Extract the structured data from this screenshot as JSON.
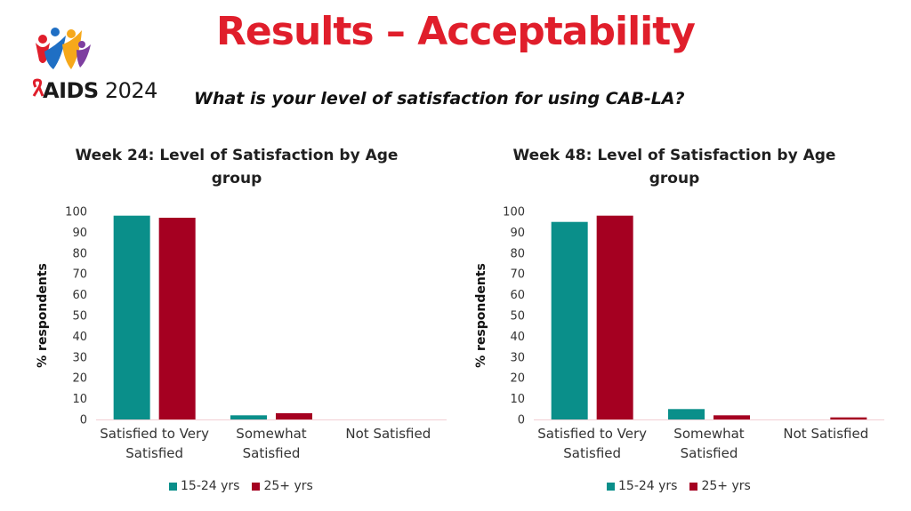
{
  "slide": {
    "title": "Results – Acceptability",
    "question": "What is your level of satisfaction for using CAB-LA?",
    "logo_word": "AIDS",
    "logo_year": "2024"
  },
  "colors": {
    "title": "#e01e2b",
    "series_teal": "#0a8f8a",
    "series_red": "#a50021",
    "axis": "#f2cfd4"
  },
  "chart_data": [
    {
      "type": "bar",
      "title": "Week 24: Level of Satisfaction by Age group",
      "title_lines": [
        "Week 24: Level of Satisfaction by Age",
        "group"
      ],
      "ylabel": "% respondents",
      "xlabel": "",
      "ylim": [
        0,
        100
      ],
      "yticks": [
        0,
        10,
        20,
        30,
        40,
        50,
        60,
        70,
        80,
        90,
        100
      ],
      "categories": [
        "Satisfied to Very Satisfied",
        "Somewhat Satisfied",
        "Not Satisfied"
      ],
      "category_lines": [
        [
          "Satisfied to Very",
          "Satisfied"
        ],
        [
          "Somewhat",
          "Satisfied"
        ],
        [
          "Not Satisfied"
        ]
      ],
      "series": [
        {
          "name": "15-24 yrs",
          "values": [
            98,
            2,
            0
          ],
          "color": "#0a8f8a"
        },
        {
          "name": "25+ yrs",
          "values": [
            97,
            3,
            0
          ],
          "color": "#a50021"
        }
      ],
      "legend": "bottom",
      "grid": false
    },
    {
      "type": "bar",
      "title": "Week 48: Level of Satisfaction by Age group",
      "title_lines": [
        "Week 48: Level of Satisfaction by Age",
        "group"
      ],
      "ylabel": "% respondents",
      "xlabel": "",
      "ylim": [
        0,
        100
      ],
      "yticks": [
        0,
        10,
        20,
        30,
        40,
        50,
        60,
        70,
        80,
        90,
        100
      ],
      "categories": [
        "Satisfied to Very Satisfied",
        "Somewhat Satisfied",
        "Not Satisfied"
      ],
      "category_lines": [
        [
          "Satisfied to Very",
          "Satisfied"
        ],
        [
          "Somewhat",
          "Satisfied"
        ],
        [
          "Not Satisfied"
        ]
      ],
      "series": [
        {
          "name": "15-24 yrs",
          "values": [
            95,
            5,
            0
          ],
          "color": "#0a8f8a"
        },
        {
          "name": "25+ yrs",
          "values": [
            98,
            2,
            1
          ],
          "color": "#a50021"
        }
      ],
      "legend": "bottom",
      "grid": false
    }
  ]
}
